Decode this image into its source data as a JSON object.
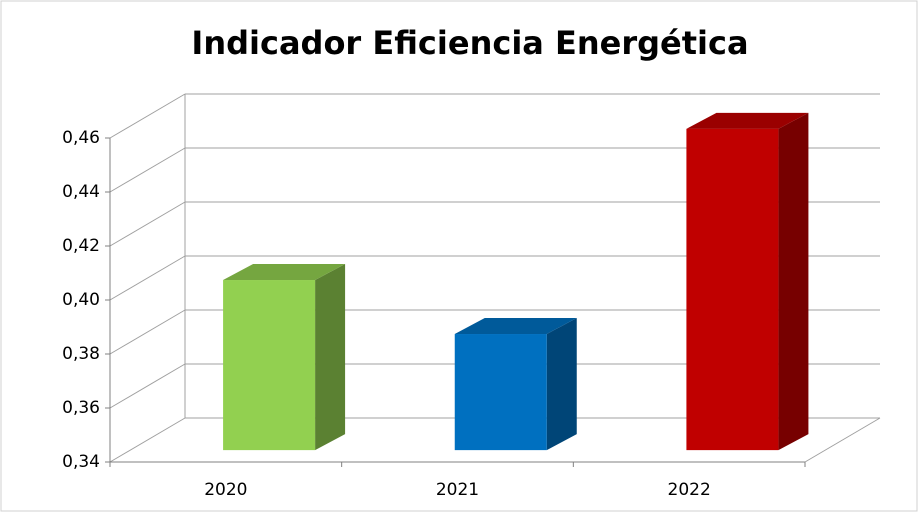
{
  "chart_data": {
    "type": "bar3d",
    "title": "Indicador Eficiencia Energética",
    "categories": [
      "2020",
      "2021",
      "2022"
    ],
    "values": [
      0.403,
      0.383,
      0.459
    ],
    "colors": [
      "#92d050",
      "#0070c0",
      "#c00000"
    ],
    "ylim": [
      0.34,
      0.46
    ],
    "yticks": [
      {
        "value": 0.34,
        "label": "0,34"
      },
      {
        "value": 0.36,
        "label": "0,36"
      },
      {
        "value": 0.38,
        "label": "0,38"
      },
      {
        "value": 0.4,
        "label": "0,40"
      },
      {
        "value": 0.42,
        "label": "0,42"
      },
      {
        "value": 0.44,
        "label": "0,44"
      },
      {
        "value": 0.46,
        "label": "0,46"
      }
    ],
    "grid": true
  }
}
